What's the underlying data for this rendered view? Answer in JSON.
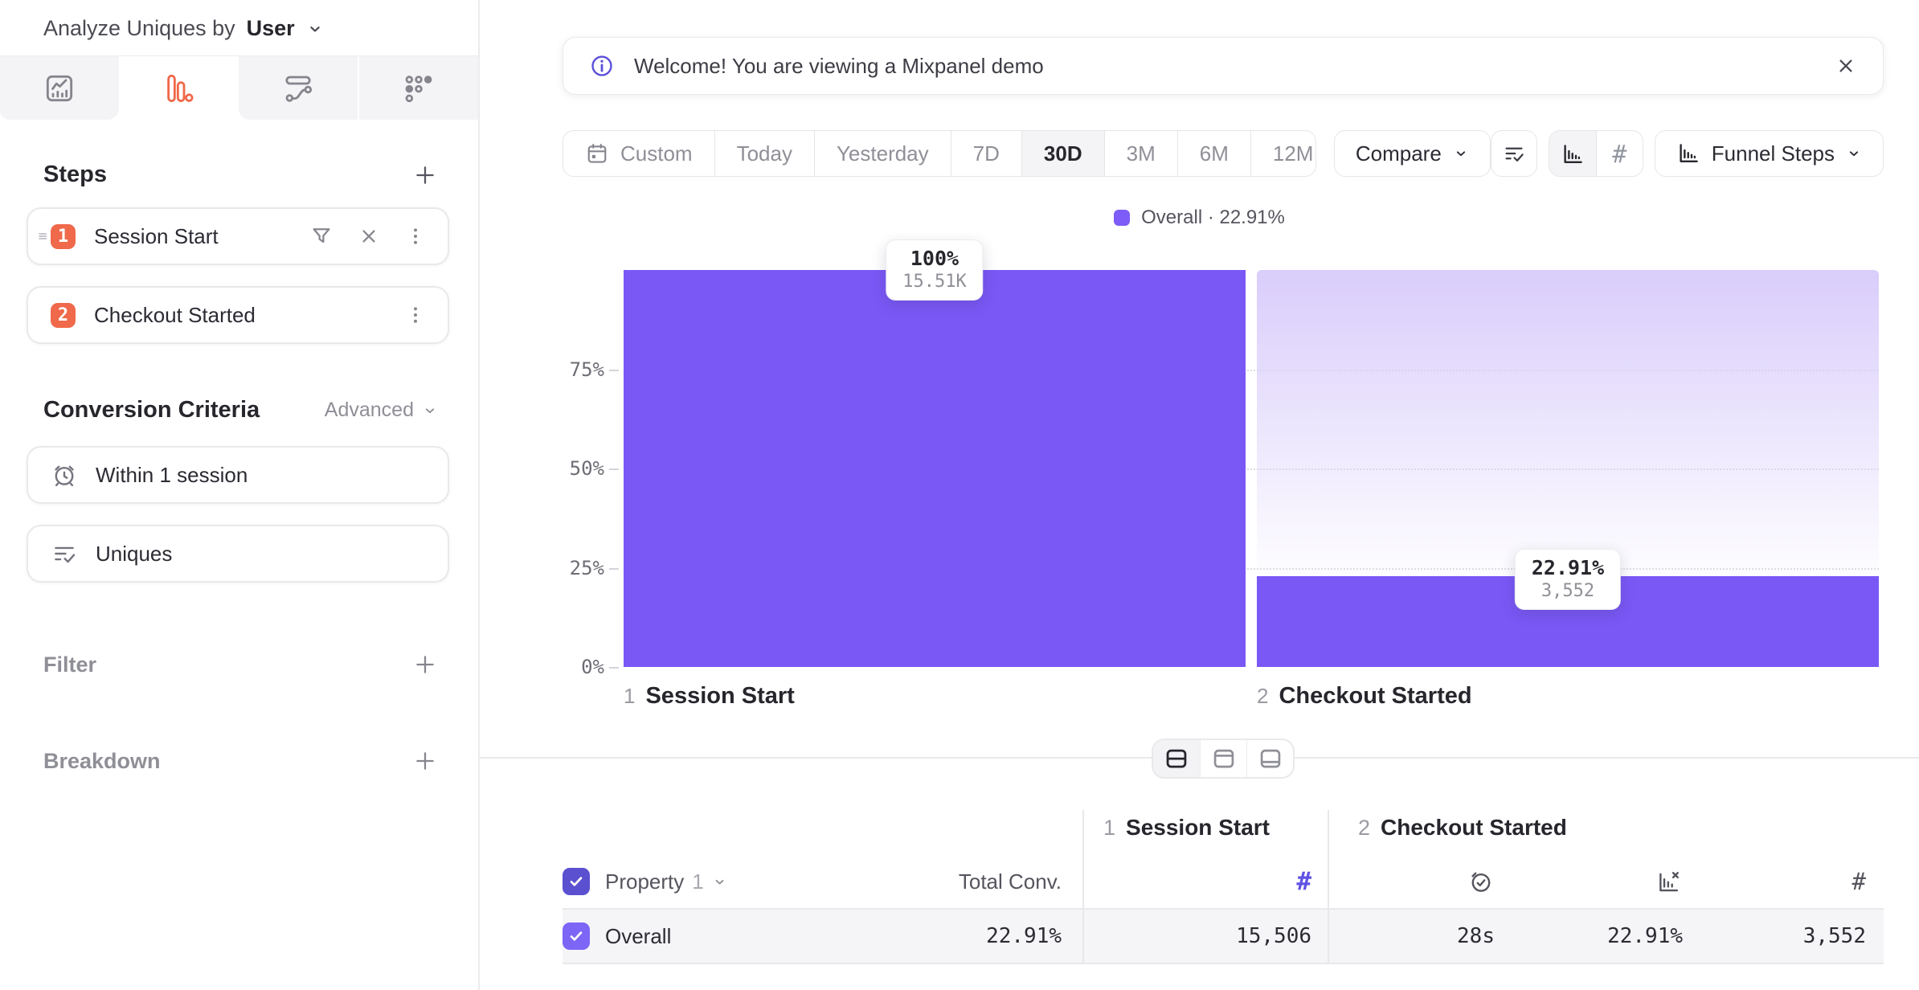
{
  "colors": {
    "accent_coral": "#f0694a",
    "bar_purple": "#7a58f6",
    "gradient_top": "#d9cdfb",
    "legend_swatch": "#7d5cf8",
    "checkbox_header": "#5a50d0",
    "checkbox_row": "#7d65f6",
    "hash_purple": "#6053e3",
    "info_indigo": "#5b51d8"
  },
  "sidebar": {
    "analyze": {
      "label": "Analyze Uniques by",
      "value": "User"
    },
    "tabs": [
      {
        "icon": "insights-chart-icon",
        "active": false
      },
      {
        "icon": "funnel-bars-icon",
        "active": true
      },
      {
        "icon": "flows-icon",
        "active": false
      },
      {
        "icon": "retention-icon",
        "active": false
      }
    ],
    "steps": {
      "title": "Steps",
      "items": [
        {
          "index": "1",
          "label": "Session Start",
          "actions": [
            "filter",
            "remove",
            "more"
          ]
        },
        {
          "index": "2",
          "label": "Checkout Started",
          "actions": [
            "more"
          ]
        }
      ]
    },
    "conversion_criteria": {
      "title": "Conversion Criteria",
      "advanced_label": "Advanced",
      "items": [
        {
          "icon": "alarm-clock-icon",
          "label": "Within 1 session"
        },
        {
          "icon": "list-check-icon",
          "label": "Uniques"
        }
      ]
    },
    "filter": {
      "label": "Filter"
    },
    "breakdown": {
      "label": "Breakdown"
    }
  },
  "banner": {
    "icon": "info-icon",
    "text": "Welcome! You are viewing a Mixpanel demo"
  },
  "toolbar": {
    "date_ranges": [
      "Custom",
      "Today",
      "Yesterday",
      "7D",
      "30D",
      "3M",
      "6M",
      "12M"
    ],
    "active_range": "30D",
    "compare_label": "Compare",
    "view_toggle": [
      "bar-chart-icon",
      "hash-icon"
    ],
    "active_view": "bar-chart-icon",
    "hash_glyph": "#",
    "funnel_steps_label": "Funnel Steps"
  },
  "chart_data": {
    "type": "bar",
    "subtype": "funnel-steps",
    "legend": {
      "text": "Overall · 22.91%",
      "position": "top-center"
    },
    "y_ticks_top_down": [
      "75%",
      "50%",
      "25%",
      "0%"
    ],
    "ylim": [
      0,
      100
    ],
    "grid": "dotted-horizontal",
    "step_indices": [
      "1",
      "2"
    ],
    "categories": [
      "Session Start",
      "Checkout Started"
    ],
    "series": [
      {
        "name": "Overall",
        "pct": [
          100,
          22.91
        ],
        "pct_labels": [
          "100%",
          "22.91%"
        ],
        "count_labels": [
          "15.51K",
          "3,552"
        ]
      }
    ],
    "overall_conversion": "22.91%"
  },
  "table": {
    "groups": [
      {
        "index": "1",
        "label": "Session Start"
      },
      {
        "index": "2",
        "label": "Checkout Started"
      }
    ],
    "header": {
      "property_label": "Property",
      "property_index": "1",
      "total_conv_label": "Total Conv."
    },
    "column_icons": [
      "hash-icon",
      "alarm-check-icon",
      "funnel-rate-icon",
      "hash-icon"
    ],
    "rows": [
      {
        "label": "Overall",
        "total_conv": "22.91%",
        "values": [
          "15,506",
          "28s",
          "22.91%",
          "3,552"
        ]
      }
    ]
  }
}
